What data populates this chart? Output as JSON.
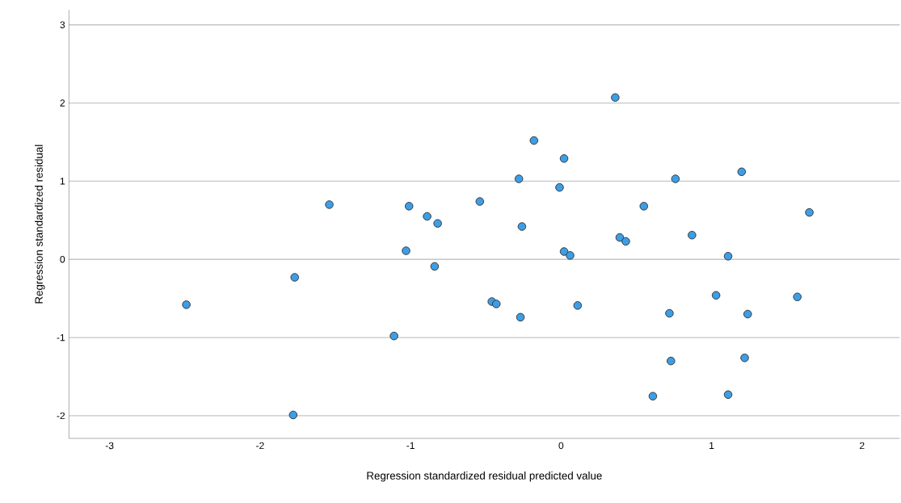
{
  "chart_data": {
    "type": "scatter",
    "xlabel": "Regression standardized residual predicted value",
    "ylabel": "Regression standardized residual",
    "x": [
      -2.49,
      -1.77,
      -1.78,
      -1.54,
      -1.01,
      -1.03,
      -1.11,
      -0.89,
      -0.82,
      -0.84,
      -0.54,
      -0.46,
      -0.43,
      -0.28,
      -0.26,
      -0.27,
      -0.18,
      0.02,
      -0.01,
      0.02,
      0.06,
      0.11,
      0.36,
      0.39,
      0.43,
      0.55,
      0.61,
      0.72,
      0.73,
      0.76,
      0.87,
      1.03,
      1.11,
      1.11,
      1.2,
      1.22,
      1.24,
      1.57,
      1.65
    ],
    "values": [
      -0.58,
      -0.23,
      -1.99,
      0.7,
      0.68,
      0.11,
      -0.98,
      0.55,
      0.46,
      -0.09,
      0.74,
      -0.54,
      -0.57,
      1.03,
      0.42,
      -0.74,
      1.52,
      1.29,
      0.92,
      0.1,
      0.05,
      -0.59,
      2.07,
      0.28,
      0.23,
      0.68,
      -1.75,
      -0.69,
      -1.3,
      1.03,
      0.31,
      -0.46,
      0.04,
      -1.73,
      1.12,
      -1.26,
      -0.7,
      -0.48,
      0.6
    ],
    "color": "#3d9ee6",
    "marker": "circle",
    "grid": "y",
    "xlim": [
      -3.27,
      2.25
    ],
    "ylim": [
      -2.29,
      3.19
    ],
    "xticks": [
      -3,
      -2,
      -1,
      0,
      1,
      2
    ],
    "yticks": [
      -2,
      -1,
      0,
      1,
      2,
      3
    ]
  }
}
